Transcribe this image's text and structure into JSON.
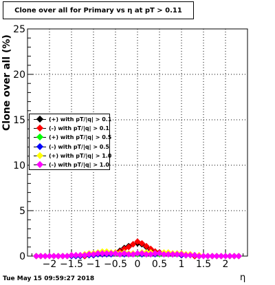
{
  "chart_data": {
    "type": "scatter",
    "title": "Clone  over all for Primary vs   η at pT > 0.11",
    "xlabel": "η",
    "ylabel": "Clone  over all (%)",
    "xlim": [
      -2.5,
      2.5
    ],
    "ylim": [
      0,
      25
    ],
    "xticks": [
      -2,
      -1.5,
      -1,
      -0.5,
      0,
      0.5,
      1,
      1.5,
      2
    ],
    "xtick_labels": [
      "−2",
      "−1.5",
      "−1",
      "−0.5",
      "0",
      "0.5",
      "1",
      "1.5",
      "2"
    ],
    "yticks": [
      0,
      5,
      10,
      15,
      20,
      25
    ],
    "ytick_labels": [
      "0",
      "5",
      "10",
      "15",
      "20",
      "25"
    ],
    "grid": true,
    "legend_position": "left-middle",
    "x": [
      -2.3,
      -2.2,
      -2.1,
      -2.0,
      -1.9,
      -1.8,
      -1.7,
      -1.6,
      -1.5,
      -1.4,
      -1.3,
      -1.2,
      -1.1,
      -1.0,
      -0.9,
      -0.8,
      -0.7,
      -0.6,
      -0.5,
      -0.4,
      -0.3,
      -0.2,
      -0.1,
      0.0,
      0.1,
      0.2,
      0.3,
      0.4,
      0.5,
      0.6,
      0.7,
      0.8,
      0.9,
      1.0,
      1.1,
      1.2,
      1.3,
      1.4,
      1.5,
      1.6,
      1.7,
      1.8,
      1.9,
      2.0,
      2.1,
      2.2,
      2.3
    ],
    "series": [
      {
        "name": "(+) with pT/|q| > 0.1",
        "color": "#000000",
        "values": [
          0,
          0,
          0,
          0,
          0,
          0,
          0,
          0,
          0,
          0,
          0,
          0,
          0.1,
          0.1,
          0.2,
          0.2,
          0.3,
          0.3,
          0.4,
          0.6,
          0.9,
          1.1,
          1.3,
          1.4,
          1.3,
          1.0,
          0.7,
          0.5,
          0.4,
          0.3,
          0.3,
          0.2,
          0.2,
          0.1,
          0.1,
          0.1,
          0,
          0,
          0,
          0,
          0,
          0,
          0,
          0,
          0,
          0,
          0
        ]
      },
      {
        "name": "(-) with pT/|q| > 0.1",
        "color": "#ff0000",
        "values": [
          0,
          0,
          0,
          0,
          0,
          0,
          0,
          0,
          0,
          0,
          0,
          0,
          0.1,
          0.1,
          0.2,
          0.2,
          0.2,
          0.3,
          0.4,
          0.5,
          0.8,
          1.0,
          1.3,
          1.6,
          1.4,
          1.1,
          0.8,
          0.5,
          0.4,
          0.3,
          0.2,
          0.2,
          0.2,
          0.1,
          0.1,
          0.1,
          0,
          0,
          0,
          0,
          0,
          0,
          0,
          0,
          0,
          0,
          0
        ]
      },
      {
        "name": "(+) with pT/|q| > 0.5",
        "color": "#00ff00",
        "values": [
          0,
          0,
          0,
          0,
          0,
          0,
          0,
          0,
          0,
          0,
          0,
          0.1,
          0.1,
          0.2,
          0.2,
          0.3,
          0.4,
          0.3,
          0.3,
          0.3,
          0.3,
          0.2,
          0.2,
          0.2,
          0.2,
          0.2,
          0.3,
          0.3,
          0.2,
          0.3,
          0.3,
          0.2,
          0.2,
          0.2,
          0.1,
          0.1,
          0.1,
          0,
          0,
          0,
          0,
          0,
          0,
          0,
          0,
          0,
          0
        ]
      },
      {
        "name": "(-) with pT/|q| > 0.5",
        "color": "#0000ff",
        "values": [
          0,
          0,
          0,
          0,
          0,
          0,
          0,
          0,
          0,
          0,
          0,
          0.1,
          0.1,
          0.1,
          0.2,
          0.2,
          0.2,
          0.2,
          0.3,
          0.2,
          0.2,
          0.2,
          0.2,
          0.3,
          0.2,
          0.2,
          0.2,
          0.2,
          0.3,
          0.2,
          0.2,
          0.2,
          0.2,
          0.1,
          0.1,
          0.1,
          0.1,
          0,
          0,
          0,
          0,
          0,
          0,
          0,
          0,
          0,
          0
        ]
      },
      {
        "name": "(+) with pT/|q| > 1.0",
        "color": "#ffff00",
        "values": [
          0,
          0,
          0,
          0,
          0,
          0,
          0,
          0,
          0.1,
          0.1,
          0.1,
          0.2,
          0.3,
          0.3,
          0.4,
          0.5,
          0.5,
          0.4,
          0.4,
          0.3,
          0.4,
          0.3,
          0.3,
          0.3,
          0.4,
          0.4,
          0.4,
          0.3,
          0.3,
          0.4,
          0.4,
          0.3,
          0.3,
          0.3,
          0.2,
          0.2,
          0.1,
          0.1,
          0,
          0,
          0,
          0,
          0,
          0,
          0,
          0,
          0
        ]
      },
      {
        "name": "(-) with pT/|q| > 1.0",
        "color": "#ff00ff",
        "values": [
          0,
          0,
          0,
          0,
          0,
          0,
          0,
          0,
          0.1,
          0.1,
          0.1,
          0.1,
          0.2,
          0.2,
          0.3,
          0.3,
          0.3,
          0.3,
          0.3,
          0.2,
          0.3,
          0.2,
          0.2,
          0.3,
          0.3,
          0.2,
          0.2,
          0.3,
          0.3,
          0.2,
          0.2,
          0.2,
          0.2,
          0.2,
          0.1,
          0.1,
          0.1,
          0,
          0,
          0,
          0,
          0,
          0,
          0,
          0,
          0,
          0
        ]
      }
    ]
  },
  "footer": "Tue May 15 09:59:27 2018"
}
